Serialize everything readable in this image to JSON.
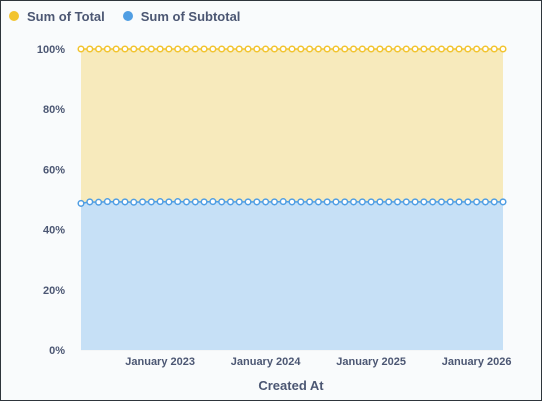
{
  "chart_data": {
    "type": "area",
    "stacked": true,
    "normalized": true,
    "xlabel": "Created At",
    "ylabel": "",
    "ylim": [
      0,
      100
    ],
    "y_ticks": [
      "0%",
      "20%",
      "40%",
      "60%",
      "80%",
      "100%"
    ],
    "x_ticks": [
      {
        "label": "January 2023",
        "date": "2023-01"
      },
      {
        "label": "January 2024",
        "date": "2024-01"
      },
      {
        "label": "January 2025",
        "date": "2025-01"
      },
      {
        "label": "January 2026",
        "date": "2026-01"
      }
    ],
    "x_range": [
      "2022-04",
      "2026-04"
    ],
    "legend_position": "top-left",
    "series": [
      {
        "name": "Sum of Total",
        "color": "#f2c42f",
        "fill": "#f7eabc",
        "values": [
          100,
          100,
          100,
          100,
          100,
          100,
          100,
          100,
          100,
          100,
          100,
          100,
          100,
          100,
          100,
          100,
          100,
          100,
          100,
          100,
          100,
          100,
          100,
          100,
          100,
          100,
          100,
          100,
          100,
          100,
          100,
          100,
          100,
          100,
          100,
          100,
          100,
          100,
          100,
          100,
          100,
          100,
          100,
          100,
          100,
          100,
          100,
          100,
          100
        ]
      },
      {
        "name": "Sum of Subtotal",
        "color": "#509ee3",
        "fill": "#c6e0f6",
        "values": [
          48.7,
          49.2,
          49.1,
          49.3,
          49.2,
          49.2,
          49.1,
          49.2,
          49.2,
          49.3,
          49.2,
          49.3,
          49.2,
          49.2,
          49.2,
          49.3,
          49.2,
          49.2,
          49.2,
          49.2,
          49.2,
          49.2,
          49.2,
          49.3,
          49.2,
          49.2,
          49.2,
          49.2,
          49.2,
          49.2,
          49.2,
          49.2,
          49.2,
          49.2,
          49.2,
          49.2,
          49.2,
          49.2,
          49.2,
          49.2,
          49.2,
          49.2,
          49.2,
          49.2,
          49.2,
          49.2,
          49.2,
          49.2,
          49.2
        ]
      }
    ]
  }
}
